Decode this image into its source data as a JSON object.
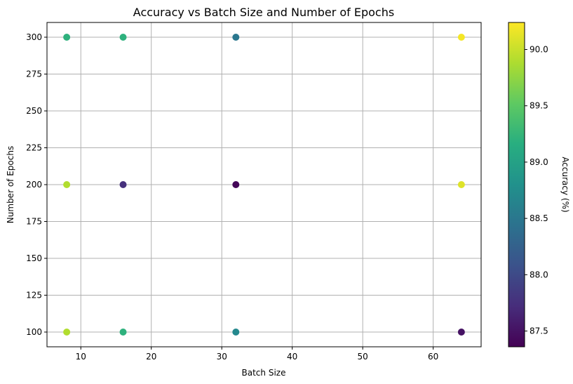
{
  "chart_data": {
    "type": "scatter",
    "title": "Accuracy vs Batch Size and Number of Epochs",
    "xlabel": "Batch Size",
    "ylabel": "Number of Epochs",
    "xlim": [
      5.2,
      66.8
    ],
    "ylim": [
      90,
      310
    ],
    "x_ticks": [
      10,
      20,
      30,
      40,
      50,
      60
    ],
    "y_ticks": [
      100,
      125,
      150,
      175,
      200,
      225,
      250,
      275,
      300
    ],
    "grid": true,
    "colormap": "viridis",
    "points": [
      {
        "x": 8,
        "y": 300,
        "value": 89.2
      },
      {
        "x": 16,
        "y": 300,
        "value": 89.2
      },
      {
        "x": 32,
        "y": 300,
        "value": 88.5
      },
      {
        "x": 64,
        "y": 300,
        "value": 90.2
      },
      {
        "x": 8,
        "y": 200,
        "value": 89.9
      },
      {
        "x": 16,
        "y": 200,
        "value": 87.75
      },
      {
        "x": 32,
        "y": 200,
        "value": 87.4
      },
      {
        "x": 64,
        "y": 200,
        "value": 90.1
      },
      {
        "x": 8,
        "y": 100,
        "value": 89.9
      },
      {
        "x": 16,
        "y": 100,
        "value": 89.2
      },
      {
        "x": 32,
        "y": 100,
        "value": 88.7
      },
      {
        "x": 64,
        "y": 100,
        "value": 87.5
      }
    ],
    "colorbar": {
      "label": "Accuracy (%)",
      "range": [
        87.36,
        90.24
      ],
      "ticks": [
        "87.5",
        "88.0",
        "88.5",
        "89.0",
        "89.5",
        "90.0"
      ]
    }
  }
}
